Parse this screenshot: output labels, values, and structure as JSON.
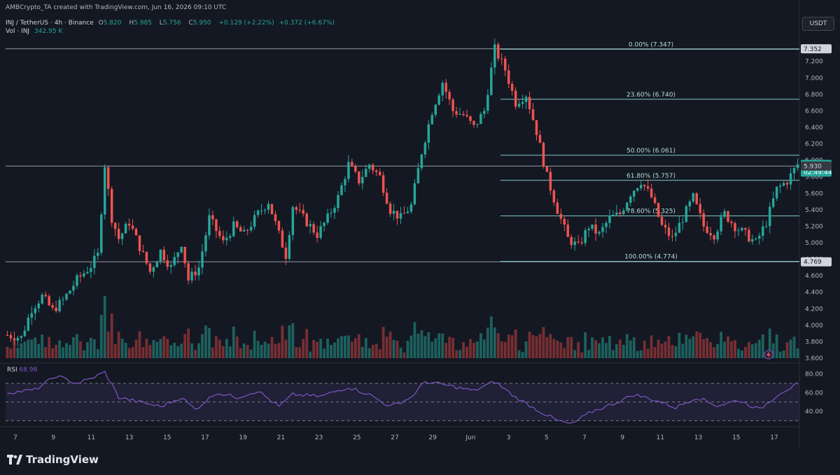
{
  "header": {
    "credit": "AMBCrypto_TA created with TradingView.com, Jun 16, 2026 09:10 UTC",
    "symbol": "INJ / TetherUS · 4h · Binance",
    "ohlc": {
      "o_label": "O",
      "o": "5.820",
      "h_label": "H",
      "h": "5.985",
      "l_label": "L",
      "l": "5.756",
      "c_label": "C",
      "c": "5.950",
      "change": "+0.129 (+2.22%)",
      "change2": "+0.372 (+6.67%)"
    },
    "volume_label": "Vol · INJ",
    "volume": "342.95 K"
  },
  "currency_button": "USDT",
  "rsi_label": "RSI",
  "rsi_value": "68.98",
  "brand": "TradingView",
  "colors": {
    "up": "#26a69a",
    "down": "#ef5350",
    "rsi": "#7e57c2",
    "bg": "#141823",
    "fib": "#80cbc4"
  },
  "chart_data": {
    "type": "candlestick",
    "price_axis_ticks": [
      "7.200",
      "7.000",
      "6.800",
      "6.600",
      "6.400",
      "6.200",
      "6.000",
      "5.800",
      "5.600",
      "5.400",
      "5.200",
      "5.000",
      "4.800",
      "4.600",
      "4.400",
      "4.200",
      "4.000",
      "3.800",
      "3.600"
    ],
    "ylim": [
      3.6,
      7.35
    ],
    "x_ticks": [
      "7",
      "9",
      "11",
      "13",
      "15",
      "17",
      "19",
      "21",
      "23",
      "25",
      "27",
      "29",
      "Jun",
      "3",
      "5",
      "7",
      "9",
      "11",
      "13",
      "15",
      "17"
    ],
    "price_labels": [
      {
        "text": "7.352",
        "value": 7.352,
        "style": "light"
      },
      {
        "text": "5.950",
        "sub": "02:49:44",
        "value": 5.95,
        "style": "up"
      },
      {
        "text": "5.930",
        "value": 5.93,
        "style": "dark"
      },
      {
        "text": "4.769",
        "value": 4.769,
        "style": "light"
      }
    ],
    "horizontal_lines": [
      7.352,
      5.93,
      4.769
    ],
    "fibonacci": [
      {
        "label": "0.00% (7.347)",
        "value": 7.347
      },
      {
        "label": "23.60% (6.740)",
        "value": 6.74
      },
      {
        "label": "50.00% (6.061)",
        "value": 6.061
      },
      {
        "label": "61.80% (5.757)",
        "value": 5.757
      },
      {
        "label": "78.60% (5.325)",
        "value": 5.325
      },
      {
        "label": "100.00% (4.774)",
        "value": 4.774
      }
    ],
    "price_path": [
      [
        0,
        3.88
      ],
      [
        4,
        3.85
      ],
      [
        7,
        4.2
      ],
      [
        10,
        4.35
      ],
      [
        13,
        4.18
      ],
      [
        16,
        4.3
      ],
      [
        20,
        4.55
      ],
      [
        24,
        4.72
      ],
      [
        26,
        4.85
      ],
      [
        28,
        5.95
      ],
      [
        30,
        5.3
      ],
      [
        32,
        5.05
      ],
      [
        35,
        5.25
      ],
      [
        38,
        4.95
      ],
      [
        41,
        4.65
      ],
      [
        44,
        4.9
      ],
      [
        47,
        4.7
      ],
      [
        50,
        5.0
      ],
      [
        52,
        4.55
      ],
      [
        55,
        4.7
      ],
      [
        58,
        5.3
      ],
      [
        62,
        5.0
      ],
      [
        65,
        5.2
      ],
      [
        68,
        5.1
      ],
      [
        72,
        5.35
      ],
      [
        75,
        5.5
      ],
      [
        78,
        5.1
      ],
      [
        80,
        4.85
      ],
      [
        82,
        5.45
      ],
      [
        86,
        5.25
      ],
      [
        89,
        5.1
      ],
      [
        92,
        5.3
      ],
      [
        95,
        5.55
      ],
      [
        98,
        5.95
      ],
      [
        101,
        5.75
      ],
      [
        104,
        5.95
      ],
      [
        107,
        5.8
      ],
      [
        110,
        5.4
      ],
      [
        113,
        5.3
      ],
      [
        116,
        5.45
      ],
      [
        119,
        6.1
      ],
      [
        122,
        6.6
      ],
      [
        125,
        6.95
      ],
      [
        128,
        6.6
      ],
      [
        131,
        6.55
      ],
      [
        134,
        6.4
      ],
      [
        137,
        6.6
      ],
      [
        140,
        7.35
      ],
      [
        143,
        7.1
      ],
      [
        146,
        6.7
      ],
      [
        149,
        6.8
      ],
      [
        152,
        6.35
      ],
      [
        155,
        5.8
      ],
      [
        158,
        5.4
      ],
      [
        161,
        5.05
      ],
      [
        164,
        4.95
      ],
      [
        167,
        5.2
      ],
      [
        170,
        5.1
      ],
      [
        173,
        5.3
      ],
      [
        176,
        5.35
      ],
      [
        179,
        5.6
      ],
      [
        182,
        5.75
      ],
      [
        185,
        5.55
      ],
      [
        188,
        5.2
      ],
      [
        191,
        5.05
      ],
      [
        194,
        5.3
      ],
      [
        197,
        5.55
      ],
      [
        200,
        5.2
      ],
      [
        203,
        5.1
      ],
      [
        206,
        5.35
      ],
      [
        209,
        5.2
      ],
      [
        212,
        5.1
      ],
      [
        215,
        5.0
      ],
      [
        218,
        5.25
      ],
      [
        221,
        5.65
      ],
      [
        224,
        5.75
      ],
      [
        227,
        5.95
      ]
    ],
    "volume_range": [
      0,
      1
    ],
    "rsi": {
      "levels": [
        80,
        60,
        40
      ],
      "band": [
        30,
        70
      ],
      "path": [
        [
          0,
          60
        ],
        [
          8,
          63
        ],
        [
          14,
          78
        ],
        [
          20,
          70
        ],
        [
          24,
          75
        ],
        [
          28,
          82
        ],
        [
          32,
          55
        ],
        [
          38,
          50
        ],
        [
          44,
          45
        ],
        [
          50,
          55
        ],
        [
          54,
          42
        ],
        [
          60,
          60
        ],
        [
          66,
          55
        ],
        [
          72,
          62
        ],
        [
          78,
          45
        ],
        [
          82,
          58
        ],
        [
          90,
          56
        ],
        [
          98,
          66
        ],
        [
          104,
          58
        ],
        [
          110,
          45
        ],
        [
          116,
          55
        ],
        [
          120,
          72
        ],
        [
          126,
          68
        ],
        [
          134,
          62
        ],
        [
          140,
          72
        ],
        [
          146,
          55
        ],
        [
          152,
          42
        ],
        [
          158,
          30
        ],
        [
          162,
          26
        ],
        [
          168,
          40
        ],
        [
          174,
          48
        ],
        [
          180,
          58
        ],
        [
          186,
          52
        ],
        [
          192,
          44
        ],
        [
          198,
          55
        ],
        [
          204,
          46
        ],
        [
          210,
          52
        ],
        [
          216,
          42
        ],
        [
          222,
          60
        ],
        [
          227,
          69
        ]
      ]
    }
  }
}
